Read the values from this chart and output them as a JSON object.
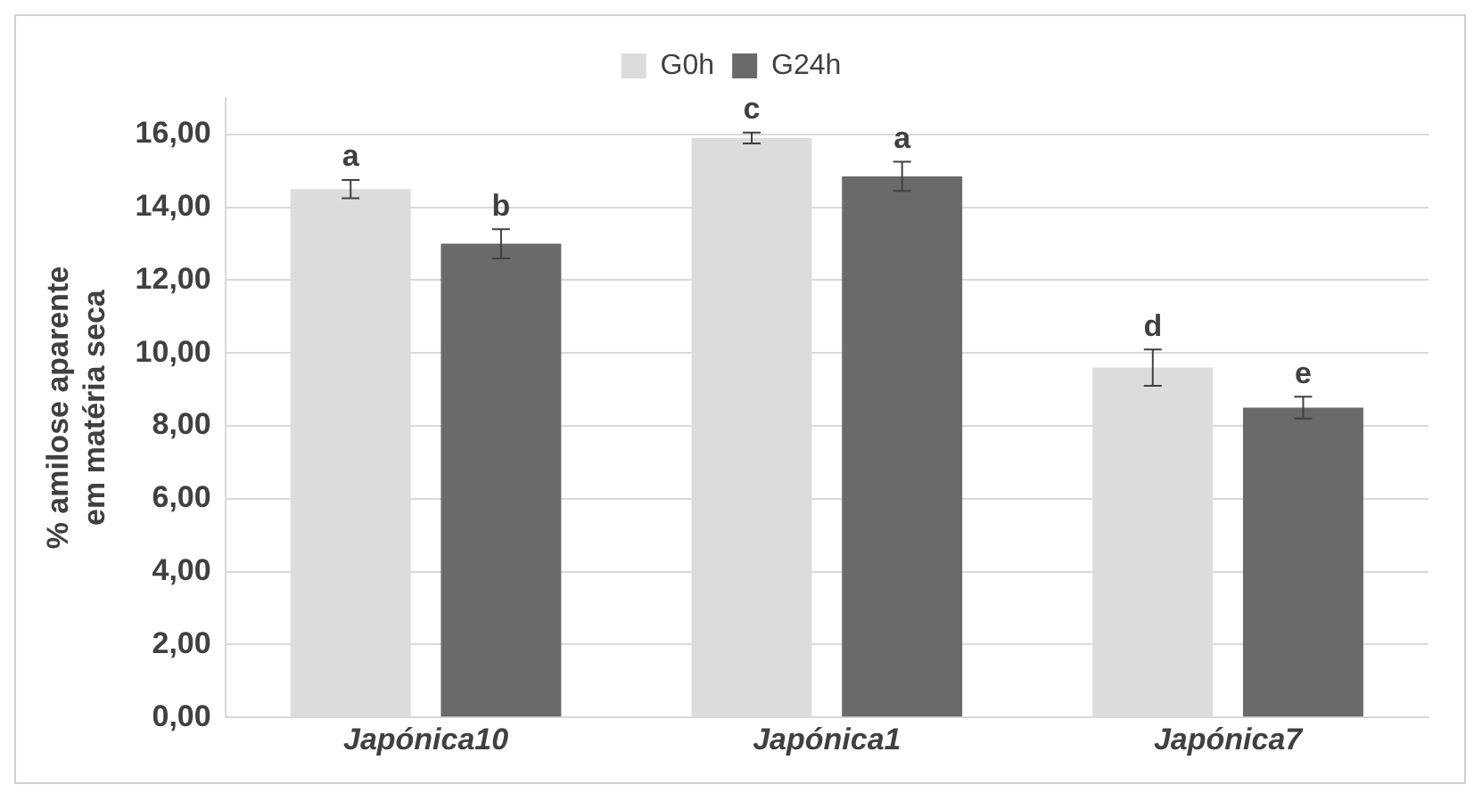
{
  "chart_data": {
    "type": "bar",
    "ylabel": "% amilose aparente em matéria seca",
    "categories": [
      "Japónica10",
      "Japónica1",
      "Japónica7"
    ],
    "series": [
      {
        "name": "G0h",
        "color": "#dcdcdc",
        "values": [
          14.5,
          15.9,
          9.6
        ],
        "errors": [
          0.25,
          0.15,
          0.5
        ]
      },
      {
        "name": "G24h",
        "color": "#6a6a6a",
        "values": [
          13.0,
          14.85,
          8.5
        ],
        "errors": [
          0.4,
          0.4,
          0.3
        ]
      }
    ],
    "ylim": [
      0,
      17
    ],
    "yticks": [
      {
        "value": 0,
        "label": "0,00"
      },
      {
        "value": 2,
        "label": "2,00"
      },
      {
        "value": 4,
        "label": "4,00"
      },
      {
        "value": 6,
        "label": "6,00"
      },
      {
        "value": 8,
        "label": "8,00"
      },
      {
        "value": 10,
        "label": "10,00"
      },
      {
        "value": 12,
        "label": "12,00"
      },
      {
        "value": 14,
        "label": "14,00"
      },
      {
        "value": 16,
        "label": "16,00"
      }
    ],
    "grid": "y",
    "legend": "top",
    "annotations": [
      "a",
      "b",
      "c",
      "a",
      "d",
      "e"
    ]
  }
}
